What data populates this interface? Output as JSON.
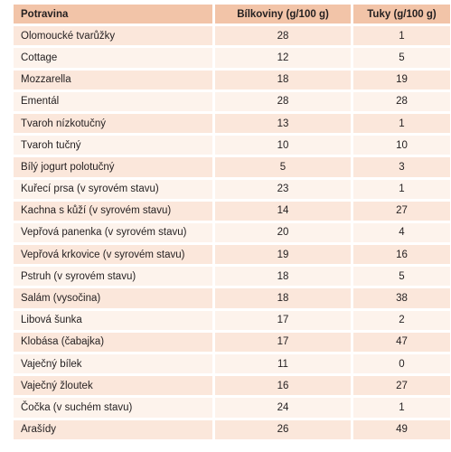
{
  "table": {
    "headers": [
      "Potravina",
      "Bílkoviny (g/100 g)",
      "Tuky (g/100 g)"
    ],
    "rows": [
      [
        "Olomoucké tvarůžky",
        "28",
        "1"
      ],
      [
        "Cottage",
        "12",
        "5"
      ],
      [
        "Mozzarella",
        "18",
        "19"
      ],
      [
        "Ementál",
        "28",
        "28"
      ],
      [
        "Tvaroh nízkotučný",
        "13",
        "1"
      ],
      [
        "Tvaroh tučný",
        "10",
        "10"
      ],
      [
        "Bílý jogurt polotučný",
        "5",
        "3"
      ],
      [
        "Kuřecí prsa (v syrovém stavu)",
        "23",
        "1"
      ],
      [
        "Kachna s kůží (v syrovém stavu)",
        "14",
        "27"
      ],
      [
        "Vepřová panenka (v syrovém stavu)",
        "20",
        "4"
      ],
      [
        "Vepřová krkovice (v syrovém stavu)",
        "19",
        "16"
      ],
      [
        "Pstruh (v syrovém stavu)",
        "18",
        "5"
      ],
      [
        "Salám (vysočina)",
        "18",
        "38"
      ],
      [
        "Libová šunka",
        "17",
        "2"
      ],
      [
        "Klobása (čabajka)",
        "17",
        "47"
      ],
      [
        "Vaječný bílek",
        "11",
        "0"
      ],
      [
        "Vaječný žloutek",
        "16",
        "27"
      ],
      [
        "Čočka (v suchém stavu)",
        "24",
        "1"
      ],
      [
        "Arašídy",
        "26",
        "49"
      ]
    ]
  }
}
